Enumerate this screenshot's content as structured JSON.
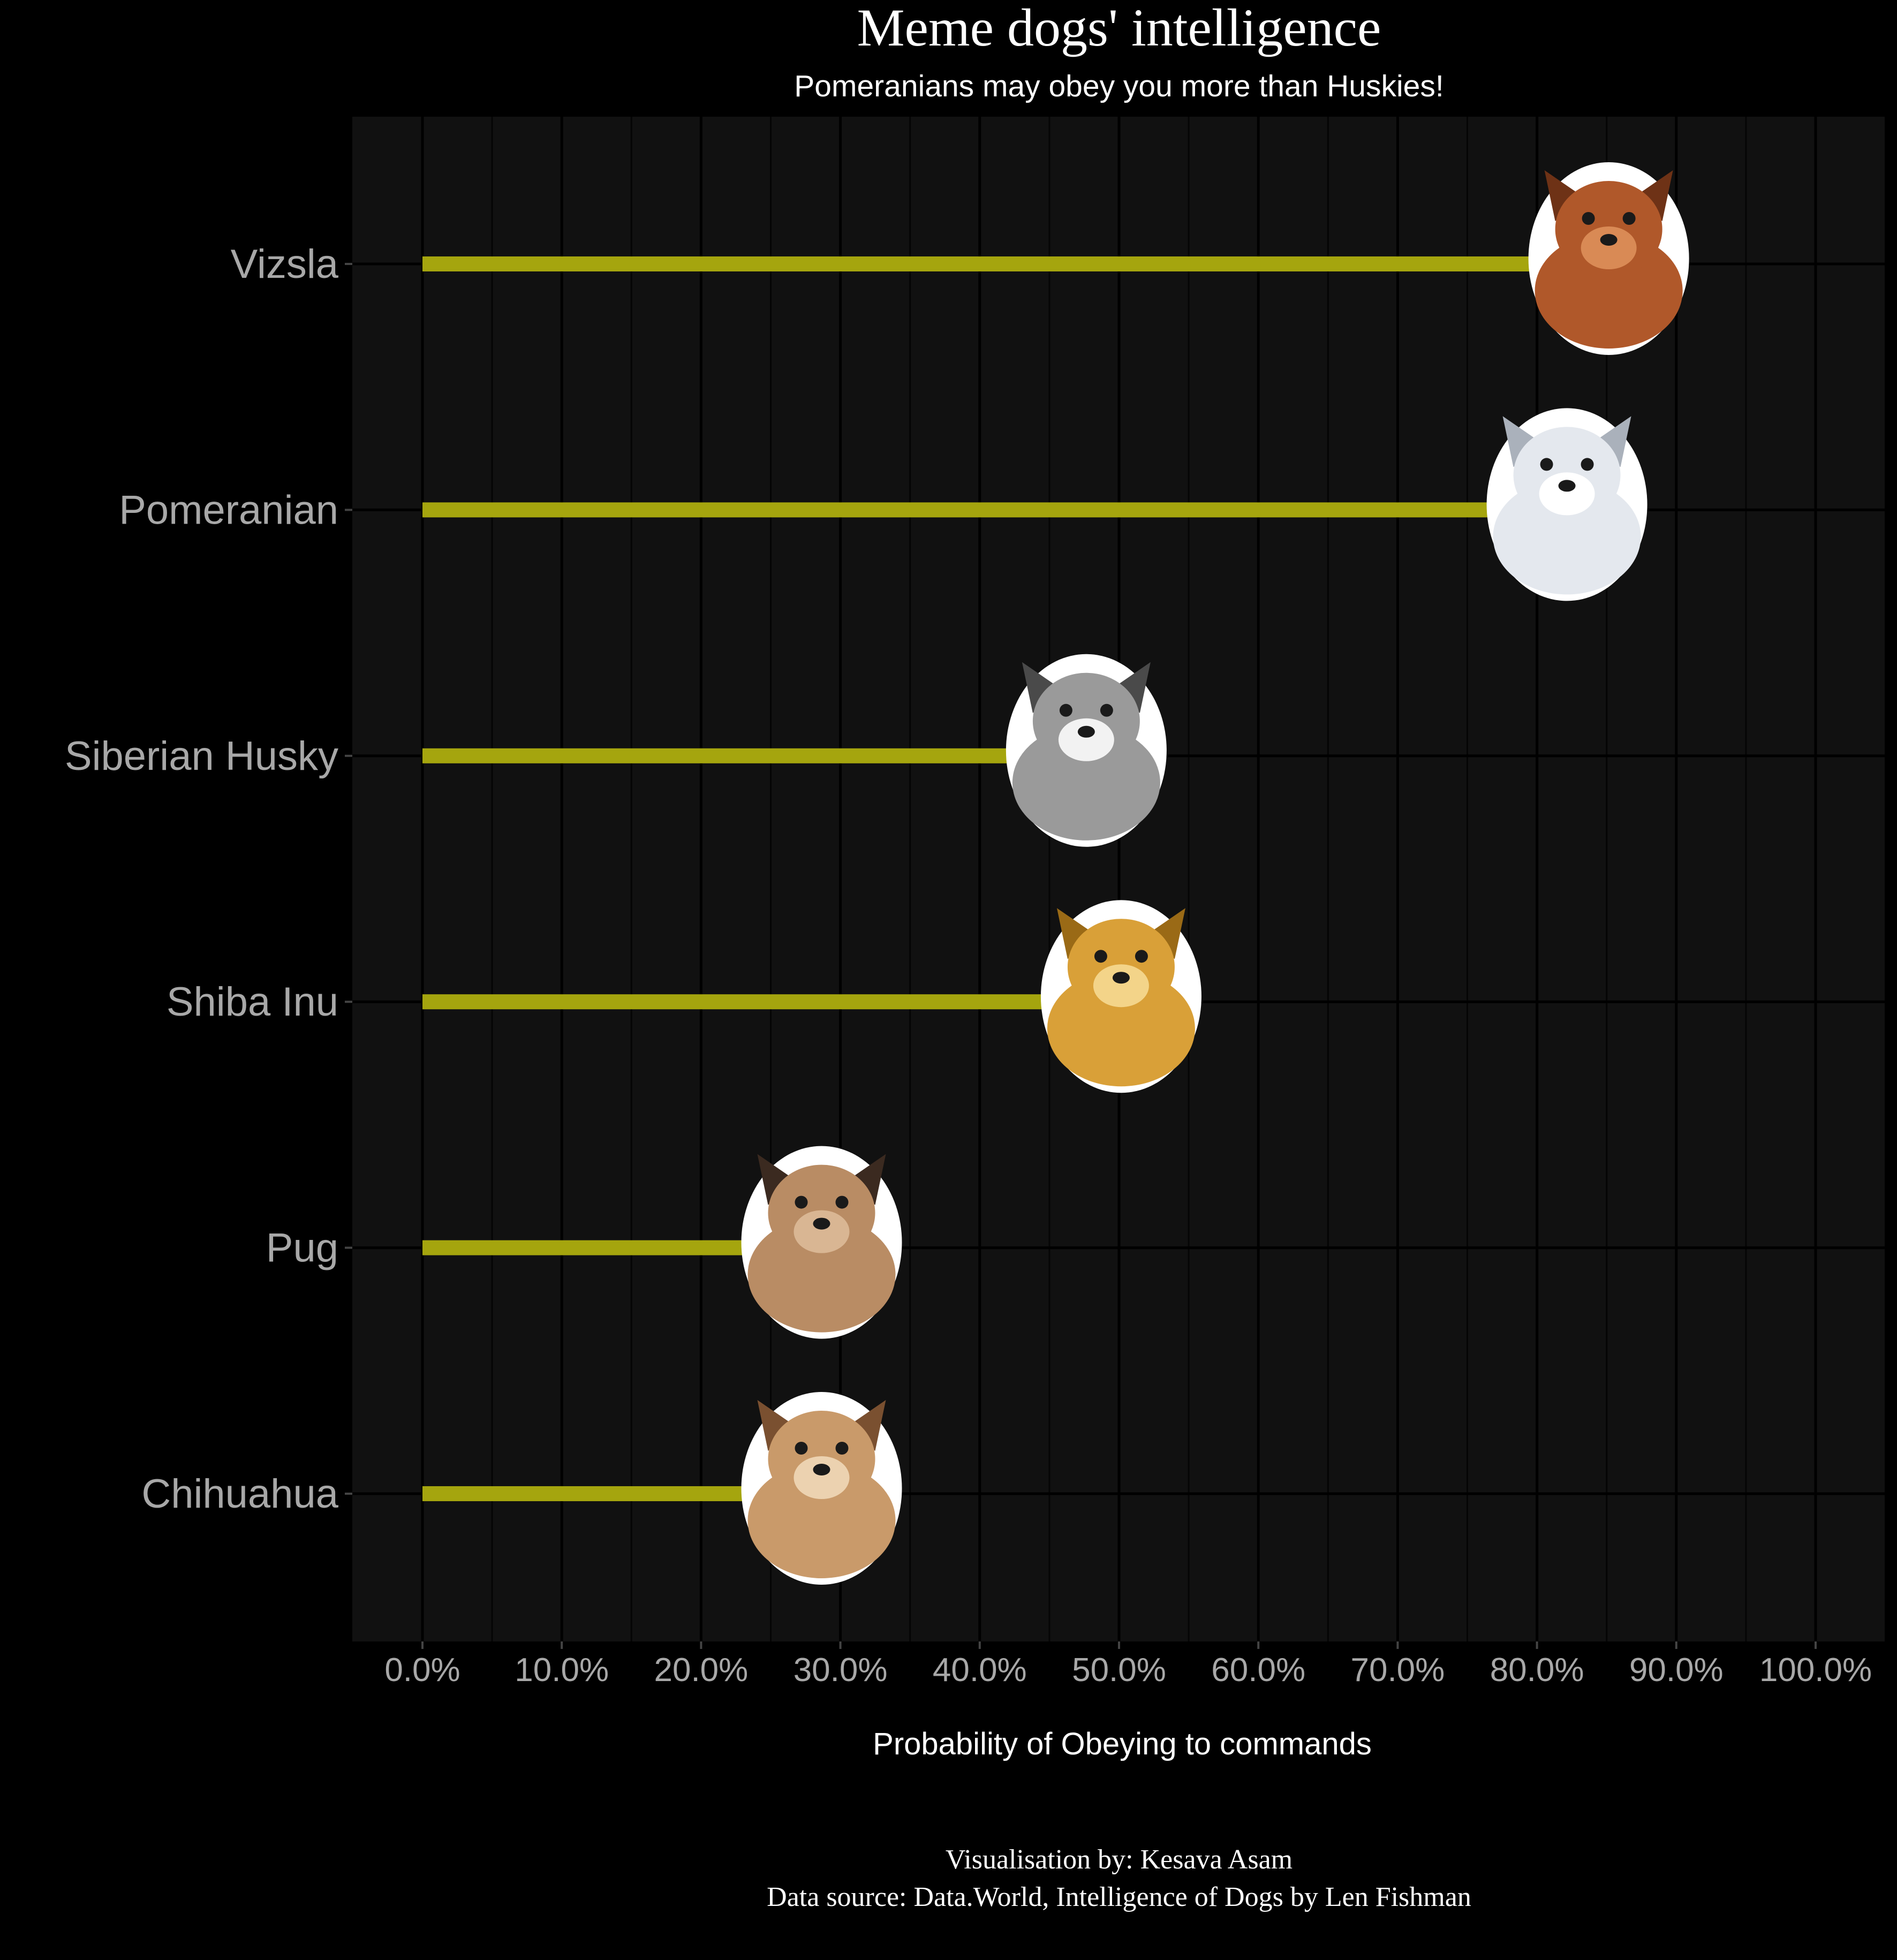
{
  "chart_data": {
    "type": "bar",
    "orientation": "horizontal",
    "title": "Meme dogs' intelligence",
    "subtitle": "Pomeranians may obey you more than Huskies!",
    "xlabel": "Probability of Obeying to commands",
    "ylabel": "",
    "categories": [
      "Vizsla",
      "Pomeranian",
      "Siberian Husky",
      "Shiba Inu",
      "Pug",
      "Chihuahua"
    ],
    "values": [
      0.815,
      0.785,
      0.44,
      0.465,
      0.25,
      0.25
    ],
    "xlim": [
      0,
      1
    ],
    "x_ticks": [
      "0.0%",
      "10.0%",
      "20.0%",
      "30.0%",
      "40.0%",
      "50.0%",
      "60.0%",
      "70.0%",
      "80.0%",
      "90.0%",
      "100.0%"
    ],
    "grid": true,
    "legend": "none",
    "bar_color": "#a5a50e",
    "panel_color": "#111111",
    "background_color": "#000000",
    "markers": [
      "vizsla-dog-picture",
      "pomeranian-dog-picture",
      "siberian-husky-dog-picture",
      "shiba-inu-dog-picture",
      "pug-dog-picture",
      "chihuahua-dog-picture"
    ]
  },
  "caption": {
    "line1": "Visualisation by: Kesava Asam",
    "line2": "Data source: Data.World, Intelligence of Dogs by Len Fishman"
  }
}
